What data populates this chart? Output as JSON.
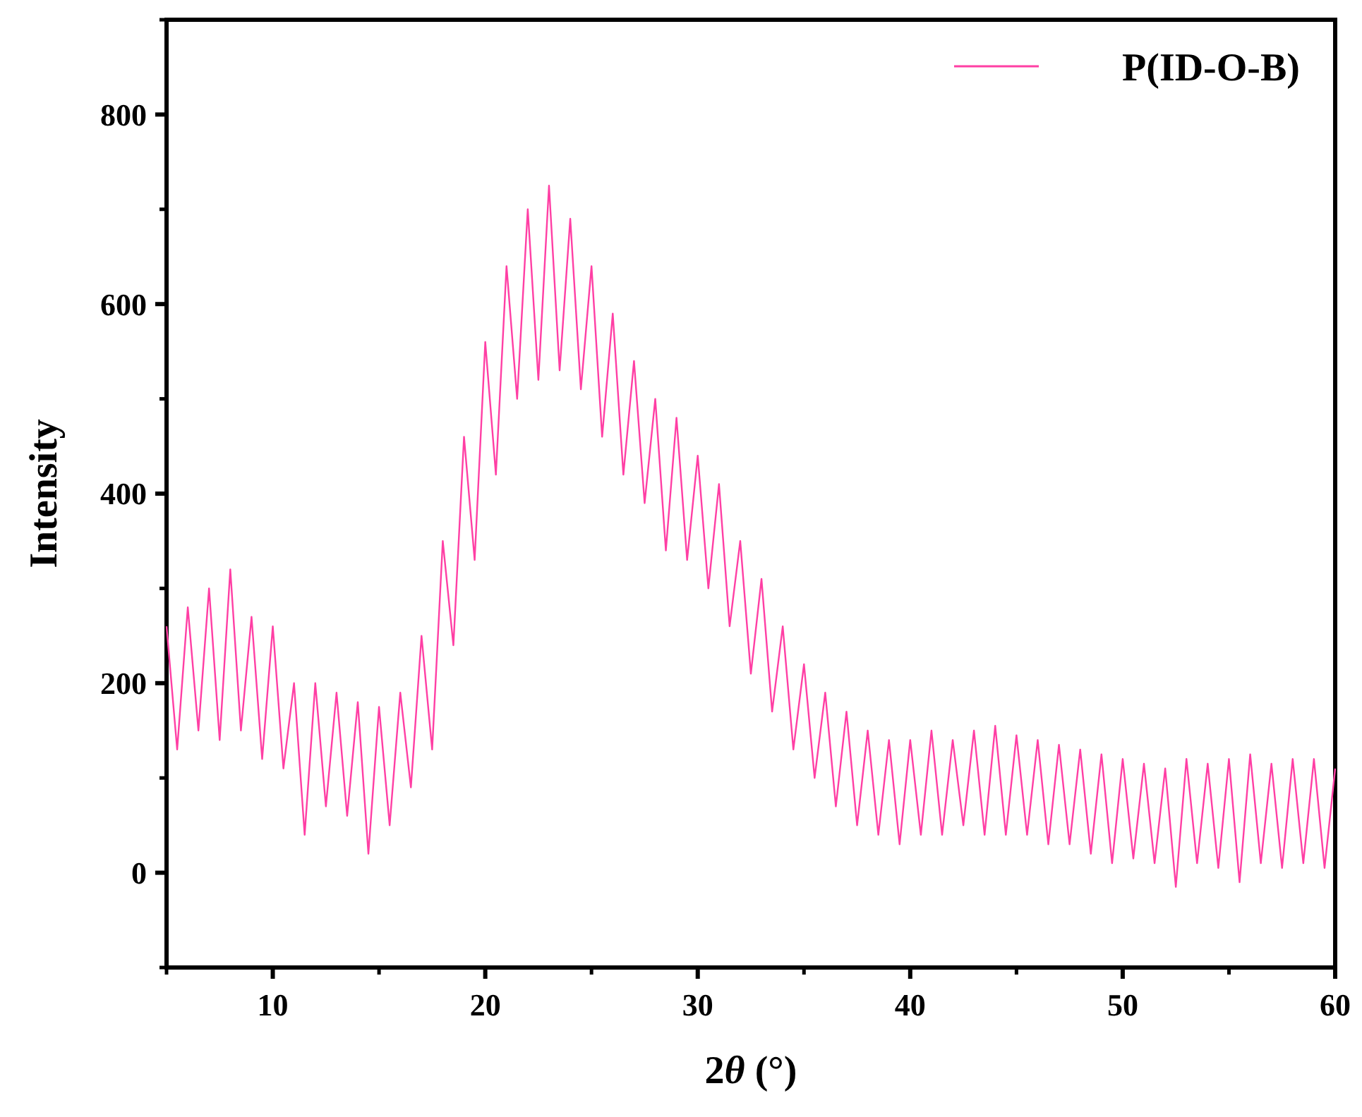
{
  "chart_data": {
    "type": "line",
    "xlabel": "2θ (°)",
    "ylabel": "Intensity",
    "xlim": [
      5,
      60
    ],
    "ylim": [
      -100,
      900
    ],
    "xticks": [
      10,
      20,
      30,
      40,
      50,
      60
    ],
    "yticks": [
      0,
      200,
      400,
      600,
      800
    ],
    "legend": "top right",
    "grid": false,
    "line_style": "solid",
    "marker": "none",
    "series": [
      {
        "name": "P(ID-O-B)",
        "color": "#ff3fa4",
        "x": [
          5,
          5.5,
          6,
          6.5,
          7,
          7.5,
          8,
          8.5,
          9,
          9.5,
          10,
          10.5,
          11,
          11.5,
          12,
          12.5,
          13,
          13.5,
          14,
          14.5,
          15,
          15.5,
          16,
          16.5,
          17,
          17.5,
          18,
          18.5,
          19,
          19.5,
          20,
          20.5,
          21,
          21.5,
          22,
          22.5,
          23,
          23.5,
          24,
          24.5,
          25,
          25.5,
          26,
          26.5,
          27,
          27.5,
          28,
          28.5,
          29,
          29.5,
          30,
          30.5,
          31,
          31.5,
          32,
          32.5,
          33,
          33.5,
          34,
          34.5,
          35,
          35.5,
          36,
          36.5,
          37,
          37.5,
          38,
          38.5,
          39,
          39.5,
          40,
          40.5,
          41,
          41.5,
          42,
          42.5,
          43,
          43.5,
          44,
          44.5,
          45,
          45.5,
          46,
          46.5,
          47,
          47.5,
          48,
          48.5,
          49,
          49.5,
          50,
          50.5,
          51,
          51.5,
          52,
          52.5,
          53,
          53.5,
          54,
          54.5,
          55,
          55.5,
          56,
          56.5,
          57,
          57.5,
          58,
          58.5,
          59,
          59.5,
          60
        ],
        "values": [
          260,
          130,
          280,
          150,
          300,
          140,
          320,
          150,
          270,
          120,
          260,
          110,
          200,
          40,
          200,
          70,
          190,
          60,
          180,
          20,
          175,
          50,
          190,
          90,
          250,
          130,
          350,
          240,
          460,
          330,
          560,
          420,
          640,
          500,
          700,
          520,
          725,
          530,
          690,
          510,
          640,
          460,
          590,
          420,
          540,
          390,
          500,
          340,
          480,
          330,
          440,
          300,
          410,
          260,
          350,
          210,
          310,
          170,
          260,
          130,
          220,
          100,
          190,
          70,
          170,
          50,
          150,
          40,
          140,
          30,
          140,
          40,
          150,
          40,
          140,
          50,
          150,
          40,
          155,
          40,
          145,
          40,
          140,
          30,
          135,
          30,
          130,
          20,
          125,
          10,
          120,
          15,
          115,
          10,
          110,
          -15,
          120,
          10,
          115,
          5,
          120,
          -10,
          125,
          10,
          115,
          5,
          120,
          10,
          120,
          5,
          110
        ]
      }
    ]
  }
}
